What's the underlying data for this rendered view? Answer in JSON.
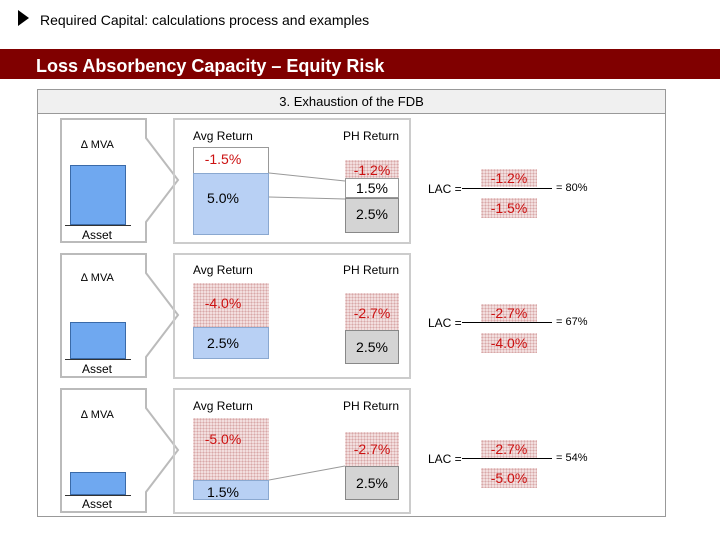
{
  "header": {
    "title": "Required Capital: calculations process and examples"
  },
  "banner": {
    "title": "Loss Absorbency Capacity – Equity Risk"
  },
  "panel": {
    "title": "3. Exhaustion of the FDB"
  },
  "labels": {
    "delta_mva": "∆ MVA",
    "asset": "Asset",
    "avg_return": "Avg Return",
    "ph_return": "PH Return",
    "lac": "LAC ="
  },
  "scenarios": [
    {
      "avg_loss": "-1.5%",
      "avg_base": "5.0%",
      "ph_loss": "-1.2%",
      "ph_mid": "1.5%",
      "ph_base": "2.5%",
      "lac_num": "-1.2%",
      "lac_den": "-1.5%",
      "lac_result": "= 80%",
      "asset_fill_pct": 80
    },
    {
      "avg_loss": "-4.0%",
      "avg_base": "2.5%",
      "ph_loss": "-2.7%",
      "ph_base": "2.5%",
      "lac_num": "-2.7%",
      "lac_den": "-4.0%",
      "lac_result": "= 67%",
      "asset_fill_pct": 50
    },
    {
      "avg_loss": "-5.0%",
      "avg_base": "1.5%",
      "ph_loss": "-2.7%",
      "ph_base": "2.5%",
      "lac_num": "-2.7%",
      "lac_den": "-5.0%",
      "lac_result": "= 54%",
      "asset_fill_pct": 30
    }
  ],
  "colors": {
    "banner": "#800000",
    "asset_blue": "#6fa8f0",
    "loss_red": "#cc1111"
  }
}
